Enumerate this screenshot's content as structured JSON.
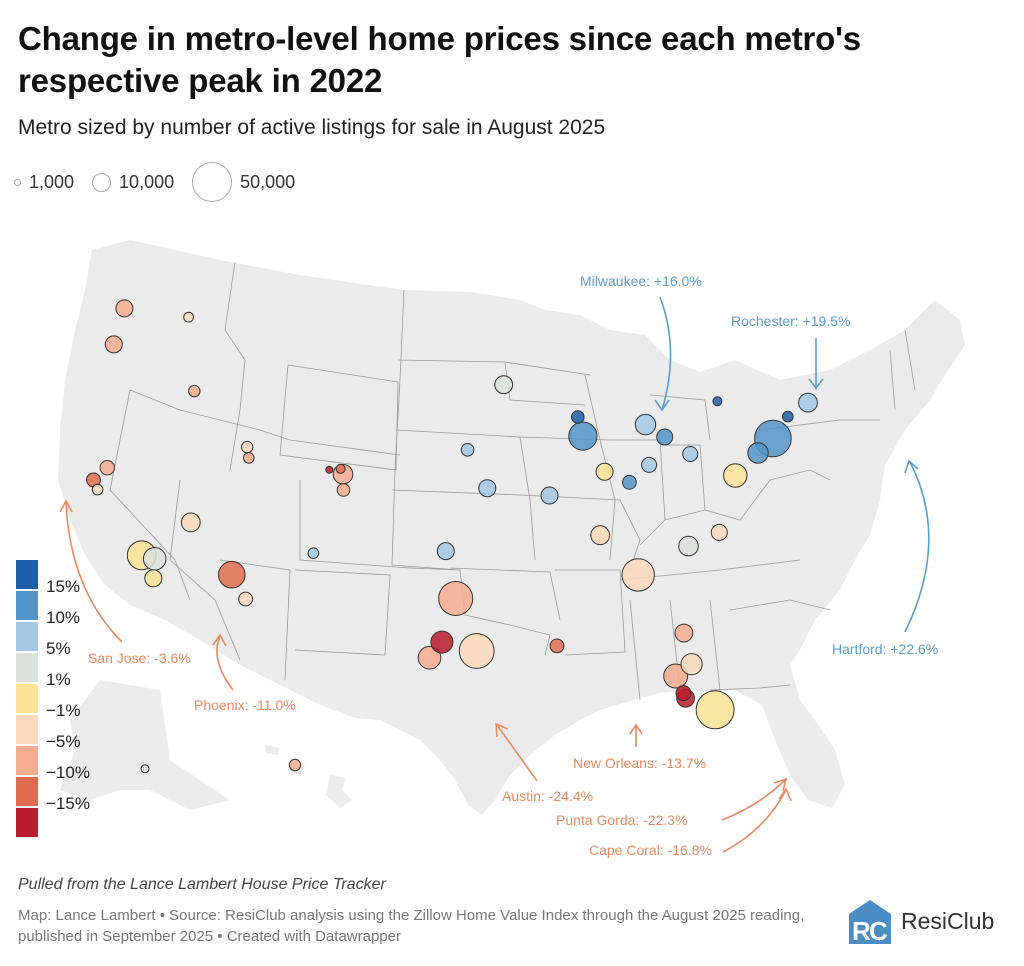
{
  "header": {
    "title": "Change in metro-level home prices since each metro's respective peak in 2022",
    "subtitle": "Metro sized by number of active listings for sale in August 2025"
  },
  "size_legend": [
    {
      "label": "1,000",
      "listings": 1000
    },
    {
      "label": "10,000",
      "listings": 10000
    },
    {
      "label": "50,000",
      "listings": 50000
    }
  ],
  "color_legend": {
    "bins": [
      {
        "color": "#1f5fa8",
        "label": "15%"
      },
      {
        "color": "#5394c8",
        "label": "10%"
      },
      {
        "color": "#a2c8e5",
        "label": "5%"
      },
      {
        "color": "#dbe2dc",
        "label": "1%"
      },
      {
        "color": "#fde398",
        "label": "−1%"
      },
      {
        "color": "#fdd9bc",
        "label": "−5%"
      },
      {
        "color": "#f5ad8f",
        "label": "−10%"
      },
      {
        "color": "#df6c50",
        "label": "−15%"
      },
      {
        "color": "#b71c2c",
        "label": ""
      }
    ]
  },
  "annotations": [
    {
      "text": "Milwaukee: +16.0%",
      "tone": "pos",
      "value": 16.0
    },
    {
      "text": "Rochester: +19.5%",
      "tone": "pos",
      "value": 19.5
    },
    {
      "text": "Hartford: +22.6%",
      "tone": "pos",
      "value": 22.6
    },
    {
      "text": "San Jose: -3.6%",
      "tone": "neg",
      "value": -3.6
    },
    {
      "text": "Phoenix: -11.0%",
      "tone": "neg",
      "value": -11.0
    },
    {
      "text": "New Orleans: -13.7%",
      "tone": "neg",
      "value": -13.7
    },
    {
      "text": "Austin: -24.4%",
      "tone": "neg",
      "value": -24.4
    },
    {
      "text": "Punta Gorda: -22.3%",
      "tone": "neg",
      "value": -22.3
    },
    {
      "text": "Cape Coral: -16.8%",
      "tone": "neg",
      "value": -16.8
    }
  ],
  "footer": {
    "note": "Pulled from the Lance Lambert House Price Tracker",
    "source": "Map: Lance Lambert • Source: ResiClub analysis using the Zillow Home Value Index through the August 2025 reading, published in September 2025 • Created with Datawrapper",
    "logo_text": "ResiClub"
  },
  "colors": {
    "positive_annotation": "#5b9dc9",
    "negative_annotation": "#e78a63",
    "land": "#ebebeb",
    "border": "#999999"
  },
  "chart_data": {
    "type": "scatter",
    "title": "Change in metro-level home prices since each metro's respective peak in 2022",
    "subtitle": "Metro sized by number of active listings for sale in August 2025",
    "xlabel": "",
    "ylabel": "",
    "encoding": {
      "size": "active listings (Aug 2025)",
      "color": "% change from 2022 peak"
    },
    "color_bins": [
      "<-15%",
      "-15% to -10%",
      "-10% to -5%",
      "-5% to -1%",
      "-1% to 1%",
      "1% to 5%",
      "5% to 10%",
      "10% to 15%",
      ">15%"
    ],
    "legend": "left",
    "labeled_metros": [
      {
        "name": "Milwaukee",
        "change_pct": 16.0,
        "bin": 8
      },
      {
        "name": "Rochester",
        "change_pct": 19.5,
        "bin": 8
      },
      {
        "name": "Hartford",
        "change_pct": 22.6,
        "bin": 8
      },
      {
        "name": "San Jose",
        "change_pct": -3.6,
        "bin": 3
      },
      {
        "name": "Phoenix",
        "change_pct": -11.0,
        "bin": 1
      },
      {
        "name": "New Orleans",
        "change_pct": -13.7,
        "bin": 1
      },
      {
        "name": "Austin",
        "change_pct": -24.4,
        "bin": 0
      },
      {
        "name": "Punta Gorda",
        "change_pct": -22.3,
        "bin": 0
      },
      {
        "name": "Cape Coral",
        "change_pct": -16.8,
        "bin": 0
      }
    ],
    "metros": [
      {
        "lon": -122.3,
        "lat": 47.6,
        "bin": 2,
        "listings": 9000
      },
      {
        "lon": -122.6,
        "lat": 45.5,
        "bin": 2,
        "listings": 9000
      },
      {
        "lon": -117.4,
        "lat": 47.7,
        "bin": 3,
        "listings": 3000
      },
      {
        "lon": -116.2,
        "lat": 43.6,
        "bin": 2,
        "listings": 4000
      },
      {
        "lon": -111.9,
        "lat": 40.8,
        "bin": 3,
        "listings": 4000
      },
      {
        "lon": -111.7,
        "lat": 40.2,
        "bin": 2,
        "listings": 3500
      },
      {
        "lon": -104.9,
        "lat": 39.7,
        "bin": 2,
        "listings": 12000
      },
      {
        "lon": -104.8,
        "lat": 38.8,
        "bin": 2,
        "listings": 5000
      },
      {
        "lon": -105.1,
        "lat": 40.0,
        "bin": 1,
        "listings": 2500
      },
      {
        "lon": -105.9,
        "lat": 39.9,
        "bin": 0,
        "listings": 1500
      },
      {
        "lon": -121.9,
        "lat": 37.3,
        "bin": 3,
        "listings": 3500
      },
      {
        "lon": -122.3,
        "lat": 37.8,
        "bin": 1,
        "listings": 6000
      },
      {
        "lon": -121.5,
        "lat": 38.6,
        "bin": 2,
        "listings": 6500
      },
      {
        "lon": -118.2,
        "lat": 34.0,
        "bin": 4,
        "listings": 26000
      },
      {
        "lon": -117.2,
        "lat": 32.8,
        "bin": 4,
        "listings": 9000
      },
      {
        "lon": -117.3,
        "lat": 33.9,
        "bin": 5,
        "listings": 16000
      },
      {
        "lon": -115.2,
        "lat": 36.2,
        "bin": 3,
        "listings": 11000
      },
      {
        "lon": -112.0,
        "lat": 33.5,
        "bin": 1,
        "listings": 22000
      },
      {
        "lon": -110.9,
        "lat": 32.2,
        "bin": 3,
        "listings": 6000
      },
      {
        "lon": -106.6,
        "lat": 35.1,
        "bin": 6,
        "listings": 3500
      },
      {
        "lon": -97.7,
        "lat": 30.3,
        "bin": 0,
        "listings": 15000
      },
      {
        "lon": -98.5,
        "lat": 29.4,
        "bin": 2,
        "listings": 16000
      },
      {
        "lon": -95.4,
        "lat": 29.8,
        "bin": 3,
        "listings": 38000
      },
      {
        "lon": -96.8,
        "lat": 32.8,
        "bin": 2,
        "listings": 36000
      },
      {
        "lon": -90.1,
        "lat": 30.0,
        "bin": 1,
        "listings": 6000
      },
      {
        "lon": -84.4,
        "lat": 33.8,
        "bin": 3,
        "listings": 33000
      },
      {
        "lon": -82.0,
        "lat": 26.6,
        "bin": 0,
        "listings": 10000
      },
      {
        "lon": -82.1,
        "lat": 26.9,
        "bin": 0,
        "listings": 7000
      },
      {
        "lon": -82.5,
        "lat": 27.9,
        "bin": 2,
        "listings": 18000
      },
      {
        "lon": -81.4,
        "lat": 28.5,
        "bin": 3,
        "listings": 14000
      },
      {
        "lon": -81.7,
        "lat": 30.3,
        "bin": 2,
        "listings": 10000
      },
      {
        "lon": -80.2,
        "lat": 25.8,
        "bin": 4,
        "listings": 45000
      },
      {
        "lon": -87.6,
        "lat": 41.9,
        "bin": 7,
        "listings": 25000
      },
      {
        "lon": -87.9,
        "lat": 43.0,
        "bin": 8,
        "listings": 5000
      },
      {
        "lon": -83.0,
        "lat": 42.3,
        "bin": 6,
        "listings": 13000
      },
      {
        "lon": -93.3,
        "lat": 45.0,
        "bin": 5,
        "listings": 10000
      },
      {
        "lon": -77.6,
        "lat": 43.2,
        "bin": 8,
        "listings": 2500
      },
      {
        "lon": -72.7,
        "lat": 41.8,
        "bin": 8,
        "listings": 3500
      },
      {
        "lon": -74.0,
        "lat": 40.7,
        "bin": 7,
        "listings": 42000
      },
      {
        "lon": -71.1,
        "lat": 42.4,
        "bin": 6,
        "listings": 11000
      },
      {
        "lon": -75.2,
        "lat": 40.0,
        "bin": 7,
        "listings": 13000
      },
      {
        "lon": -77.0,
        "lat": 38.9,
        "bin": 4,
        "listings": 17000
      },
      {
        "lon": -80.8,
        "lat": 35.2,
        "bin": 5,
        "listings": 12000
      },
      {
        "lon": -78.6,
        "lat": 35.8,
        "bin": 3,
        "listings": 8000
      },
      {
        "lon": -86.8,
        "lat": 36.2,
        "bin": 3,
        "listings": 11000
      },
      {
        "lon": -90.2,
        "lat": 38.6,
        "bin": 6,
        "listings": 9000
      },
      {
        "lon": -94.6,
        "lat": 39.1,
        "bin": 6,
        "listings": 9000
      },
      {
        "lon": -84.5,
        "lat": 39.1,
        "bin": 7,
        "listings": 6000
      },
      {
        "lon": -83.0,
        "lat": 40.0,
        "bin": 6,
        "listings": 7000
      },
      {
        "lon": -81.7,
        "lat": 41.5,
        "bin": 7,
        "listings": 8000
      },
      {
        "lon": -86.2,
        "lat": 39.8,
        "bin": 4,
        "listings": 9000
      },
      {
        "lon": -80.0,
        "lat": 40.4,
        "bin": 6,
        "listings": 7000
      },
      {
        "lon": -97.5,
        "lat": 35.5,
        "bin": 6,
        "listings": 9000
      },
      {
        "lon": -96.0,
        "lat": 41.3,
        "bin": 6,
        "listings": 5000
      },
      {
        "lon": -150.0,
        "lat": 61.2,
        "bin": 5,
        "listings": 2000
      },
      {
        "lon": -157.9,
        "lat": 21.3,
        "bin": 2,
        "listings": 4000
      }
    ]
  }
}
